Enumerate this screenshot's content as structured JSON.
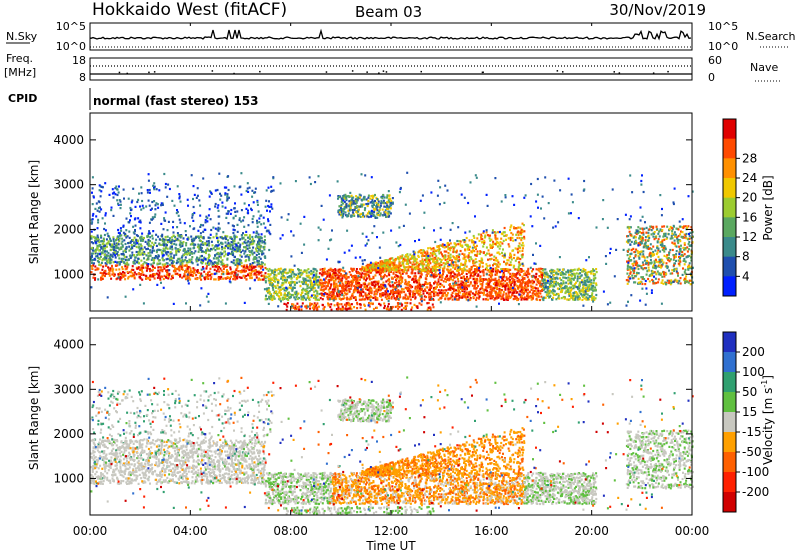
{
  "header": {
    "title": "Hokkaido West (fitACF)",
    "beam": "Beam 03",
    "date": "30/Nov/2019"
  },
  "strip": {
    "nsky_label": "N.Sky",
    "nsearch_label": "N.Search",
    "noise_ticks_left": [
      "10^5",
      "10^0"
    ],
    "noise_ticks_right": [
      "10^5",
      "10^0"
    ],
    "freq_label": "Freq.",
    "freq_unit": "[MHz]",
    "freq_ticks": [
      "18",
      "8"
    ],
    "nave_label": "Nave",
    "nave_ticks": [
      "60",
      "0"
    ],
    "cpid_label": "CPID",
    "cpid_value": "normal (fast stereo) 153"
  },
  "chart_data": [
    {
      "type": "heatmap",
      "title": "",
      "xlabel": "",
      "ylabel": "Slant Range [km]",
      "yticks": [
        "1000",
        "2000",
        "3000",
        "4000"
      ],
      "ylim": [
        180,
        4600
      ],
      "xlim": [
        "00:00",
        "24:00"
      ],
      "colorbar": {
        "label": "Power [dB]",
        "ticks": [
          "4",
          "8",
          "12",
          "16",
          "20",
          "24",
          "28"
        ],
        "colors": [
          "#0020ff",
          "#1f4fae",
          "#3a8a8a",
          "#5aa860",
          "#9ccc30",
          "#f0c800",
          "#ff9000",
          "#ff4a00",
          "#e00000"
        ]
      }
    },
    {
      "type": "heatmap",
      "title": "",
      "xlabel": "Time UT",
      "ylabel": "Slant Range [km]",
      "yticks": [
        "1000",
        "2000",
        "3000",
        "4000"
      ],
      "xticks": [
        "00:00",
        "04:00",
        "08:00",
        "12:00",
        "16:00",
        "20:00",
        "00:00"
      ],
      "colorbar": {
        "label": "Velocity [m s^-1]",
        "ticks": [
          "200",
          "100",
          "50",
          "15",
          "-15",
          "-50",
          "-100",
          "-200"
        ],
        "colors": [
          "#2030c0",
          "#3070d0",
          "#30a070",
          "#60c040",
          "#c8c8c0",
          "#ffa000",
          "#ff6000",
          "#ff2000",
          "#d00000"
        ]
      }
    }
  ]
}
